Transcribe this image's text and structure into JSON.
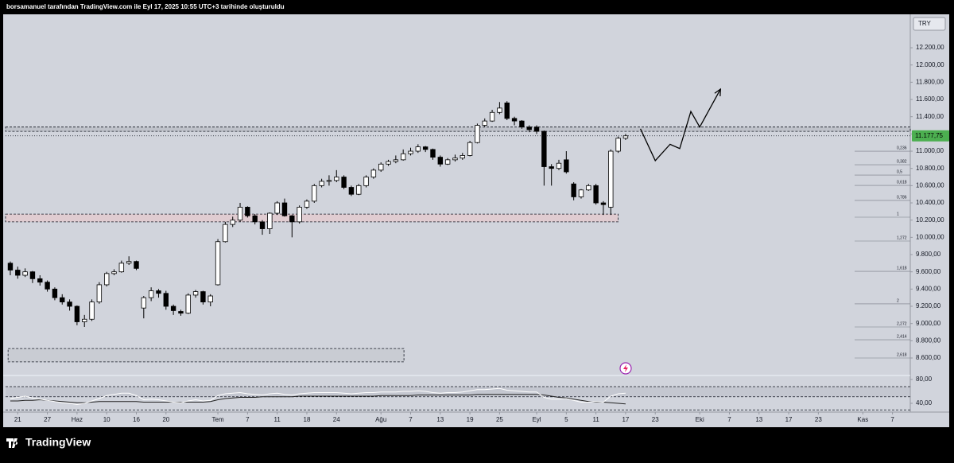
{
  "header": "borsamanuel tarafından TradingView.com ile Eyl 17, 2025 10:55 UTC+3 tarihinde oluşturuldu",
  "brand": "TradingView",
  "chart_data": {
    "type": "candlestick",
    "currency": "TRY",
    "up_color": "#ffffff",
    "down_color": "#000000",
    "wick_color": "#000000",
    "xlim": [
      -0.64,
      121.4
    ],
    "ylim": [
      8397,
      12588
    ],
    "xticks": [
      {
        "value": 1,
        "label": "21"
      },
      {
        "value": 5,
        "label": "27"
      },
      {
        "value": 9,
        "label": "Haz"
      },
      {
        "value": 13,
        "label": "10"
      },
      {
        "value": 17,
        "label": "16"
      },
      {
        "value": 21,
        "label": "20"
      },
      {
        "value": 28,
        "label": "Tem"
      },
      {
        "value": 32,
        "label": "7"
      },
      {
        "value": 36,
        "label": "11"
      },
      {
        "value": 40,
        "label": "18"
      },
      {
        "value": 44,
        "label": "24"
      },
      {
        "value": 50,
        "label": "Ağu"
      },
      {
        "value": 54,
        "label": "7"
      },
      {
        "value": 58,
        "label": "13"
      },
      {
        "value": 62,
        "label": "19"
      },
      {
        "value": 66,
        "label": "25"
      },
      {
        "value": 71,
        "label": "Eyl"
      },
      {
        "value": 75,
        "label": "5"
      },
      {
        "value": 79,
        "label": "11"
      },
      {
        "value": 83,
        "label": "17"
      },
      {
        "value": 87,
        "label": "23"
      },
      {
        "value": 93,
        "label": "Eki"
      },
      {
        "value": 97,
        "label": "7"
      },
      {
        "value": 101,
        "label": "13"
      },
      {
        "value": 105,
        "label": "17"
      },
      {
        "value": 109,
        "label": "23"
      },
      {
        "value": 115,
        "label": "Kas"
      },
      {
        "value": 119,
        "label": "7"
      }
    ],
    "yticks": [
      {
        "value": 8600,
        "label": "8.600,00"
      },
      {
        "value": 8800,
        "label": "8.800,00"
      },
      {
        "value": 9000,
        "label": "9.000,00"
      },
      {
        "value": 9200,
        "label": "9.200,00"
      },
      {
        "value": 9400,
        "label": "9.400,00"
      },
      {
        "value": 9600,
        "label": "9.600,00"
      },
      {
        "value": 9800,
        "label": "9.800,00"
      },
      {
        "value": 10000,
        "label": "10.000,00"
      },
      {
        "value": 10200,
        "label": "10.200,00"
      },
      {
        "value": 10400,
        "label": "10.400,00"
      },
      {
        "value": 10600,
        "label": "10.600,00"
      },
      {
        "value": 10800,
        "label": "10.800,00"
      },
      {
        "value": 11000,
        "label": "11.000,00"
      },
      {
        "value": 11200,
        "label": "11.200,00"
      },
      {
        "value": 11400,
        "label": "11.400,00"
      },
      {
        "value": 11600,
        "label": "11.600,00"
      },
      {
        "value": 11800,
        "label": "11.800,00"
      },
      {
        "value": 12000,
        "label": "12.000,00"
      },
      {
        "value": 12200,
        "label": "12.200,00"
      }
    ],
    "last_price": {
      "value": 11177.75,
      "label": "11.177,75",
      "color": "#4caf50"
    },
    "ohlc": [
      [
        9700,
        9720,
        9560,
        9620
      ],
      [
        9620,
        9660,
        9520,
        9560
      ],
      [
        9560,
        9640,
        9540,
        9600
      ],
      [
        9600,
        9610,
        9470,
        9520
      ],
      [
        9520,
        9560,
        9440,
        9480
      ],
      [
        9480,
        9500,
        9370,
        9400
      ],
      [
        9400,
        9420,
        9270,
        9300
      ],
      [
        9300,
        9340,
        9220,
        9250
      ],
      [
        9250,
        9280,
        9150,
        9200
      ],
      [
        9200,
        9210,
        8980,
        9020
      ],
      [
        9020,
        9100,
        8960,
        9050
      ],
      [
        9050,
        9280,
        9030,
        9250
      ],
      [
        9250,
        9480,
        9230,
        9450
      ],
      [
        9450,
        9600,
        9430,
        9580
      ],
      [
        9580,
        9630,
        9560,
        9600
      ],
      [
        9600,
        9730,
        9590,
        9700
      ],
      [
        9700,
        9780,
        9680,
        9720
      ],
      [
        9720,
        9730,
        9620,
        9640
      ],
      [
        9180,
        9320,
        9060,
        9300
      ],
      [
        9300,
        9420,
        9260,
        9380
      ],
      [
        9380,
        9400,
        9300,
        9350
      ],
      [
        9350,
        9380,
        9160,
        9200
      ],
      [
        9200,
        9220,
        9100,
        9150
      ],
      [
        9140,
        9160,
        9090,
        9120
      ],
      [
        9120,
        9350,
        9110,
        9330
      ],
      [
        9330,
        9390,
        9300,
        9370
      ],
      [
        9370,
        9380,
        9220,
        9250
      ],
      [
        9250,
        9340,
        9200,
        9320
      ],
      [
        9450,
        9980,
        9440,
        9950
      ],
      [
        9950,
        10180,
        9940,
        10150
      ],
      [
        10150,
        10240,
        10120,
        10200
      ],
      [
        10200,
        10400,
        10180,
        10350
      ],
      [
        10350,
        10360,
        10230,
        10250
      ],
      [
        10250,
        10270,
        10150,
        10180
      ],
      [
        10180,
        10200,
        10030,
        10100
      ],
      [
        10100,
        10290,
        10040,
        10280
      ],
      [
        10280,
        10420,
        10260,
        10400
      ],
      [
        10400,
        10450,
        10240,
        10250
      ],
      [
        10250,
        10260,
        10000,
        10180
      ],
      [
        10180,
        10370,
        10160,
        10350
      ],
      [
        10350,
        10440,
        10330,
        10420
      ],
      [
        10420,
        10620,
        10400,
        10600
      ],
      [
        10600,
        10680,
        10580,
        10650
      ],
      [
        10650,
        10720,
        10600,
        10660
      ],
      [
        10660,
        10780,
        10640,
        10700
      ],
      [
        10700,
        10720,
        10560,
        10580
      ],
      [
        10580,
        10600,
        10480,
        10500
      ],
      [
        10500,
        10620,
        10490,
        10600
      ],
      [
        10600,
        10720,
        10580,
        10700
      ],
      [
        10700,
        10800,
        10680,
        10780
      ],
      [
        10780,
        10870,
        10760,
        10850
      ],
      [
        10850,
        10900,
        10830,
        10880
      ],
      [
        10880,
        10950,
        10860,
        10900
      ],
      [
        10900,
        11020,
        10890,
        10970
      ],
      [
        10970,
        11040,
        10950,
        11000
      ],
      [
        11000,
        11080,
        10980,
        11050
      ],
      [
        11050,
        11060,
        10990,
        11020
      ],
      [
        11020,
        11030,
        10900,
        10930
      ],
      [
        10930,
        10950,
        10820,
        10850
      ],
      [
        10850,
        10920,
        10840,
        10900
      ],
      [
        10900,
        10960,
        10880,
        10920
      ],
      [
        10920,
        10980,
        10900,
        10950
      ],
      [
        10950,
        11120,
        10940,
        11100
      ],
      [
        11100,
        11320,
        11090,
        11300
      ],
      [
        11300,
        11380,
        11280,
        11350
      ],
      [
        11350,
        11480,
        11340,
        11450
      ],
      [
        11450,
        11570,
        11430,
        11500
      ],
      [
        11560,
        11580,
        11360,
        11380
      ],
      [
        11380,
        11400,
        11300,
        11350
      ],
      [
        11350,
        11360,
        11260,
        11280
      ],
      [
        11280,
        11300,
        11220,
        11250
      ],
      [
        11280,
        11300,
        11200,
        11230
      ],
      [
        11230,
        11240,
        10600,
        10820
      ],
      [
        10820,
        10850,
        10600,
        10800
      ],
      [
        10800,
        10900,
        10780,
        10860
      ],
      [
        10900,
        11000,
        10740,
        10760
      ],
      [
        10620,
        10640,
        10430,
        10470
      ],
      [
        10470,
        10560,
        10450,
        10550
      ],
      [
        10550,
        10620,
        10540,
        10600
      ],
      [
        10600,
        10620,
        10380,
        10400
      ],
      [
        10400,
        10420,
        10260,
        10380
      ],
      [
        10350,
        11020,
        10260,
        11000
      ],
      [
        11000,
        11170,
        10980,
        11150
      ],
      [
        11150,
        11200,
        11130,
        11177.75
      ]
    ],
    "zones": [
      {
        "x": [
          -0.64,
          121.4
        ],
        "price": [
          11230,
          11280
        ],
        "color": "#b2b5be"
      },
      {
        "x": [
          -0.64,
          82
        ],
        "price": [
          10180,
          10270
        ],
        "color": "#e9c6c9"
      },
      {
        "x": [
          -0.3,
          53.1
        ],
        "price": [
          8555,
          8710
        ],
        "color": "#c3c6cd"
      }
    ],
    "projection": {
      "x": [
        85,
        87,
        89,
        90.3,
        91.8,
        93,
        95.8
      ],
      "y": [
        11260,
        10890,
        11080,
        11030,
        11460,
        11280,
        11720
      ],
      "color": "#000000"
    },
    "fib": [
      {
        "label": "0,236",
        "price": 11000
      },
      {
        "label": "0,382",
        "price": 10843
      },
      {
        "label": "0,5",
        "price": 10723
      },
      {
        "label": "0,618",
        "price": 10603
      },
      {
        "label": "0,786",
        "price": 10428
      },
      {
        "label": "1",
        "price": 10234
      },
      {
        "label": "1,272",
        "price": 9957
      },
      {
        "label": "1,618",
        "price": 9606
      },
      {
        "label": "2",
        "price": 9228
      },
      {
        "label": "2,272",
        "price": 8960
      },
      {
        "label": "2,414",
        "price": 8812
      },
      {
        "label": "2,618",
        "price": 8600
      }
    ],
    "oscillator": {
      "ylim": [
        25.3,
        86.7
      ],
      "yticks": [
        {
          "value": 80,
          "label": "80,00"
        },
        {
          "value": 40,
          "label": "40,00"
        }
      ],
      "levels": [
        68,
        51,
        29
      ],
      "series": [
        {
          "color": "#222222",
          "values": [
            44,
            44,
            45,
            45,
            46,
            45,
            44,
            43,
            42,
            41,
            41,
            42,
            43,
            43,
            43,
            43,
            43,
            43,
            42,
            42,
            42,
            42,
            42,
            42,
            42,
            42,
            42,
            43,
            46,
            48,
            49,
            50,
            50,
            50,
            51,
            51,
            51,
            51,
            51,
            52,
            52,
            52,
            52,
            52,
            52,
            52,
            52,
            52,
            52,
            52,
            53,
            53,
            53,
            53,
            53,
            54,
            54,
            54,
            54,
            54,
            54,
            54,
            54,
            55,
            55,
            55,
            55,
            55,
            55,
            55,
            55,
            55,
            54,
            52,
            50,
            49,
            47,
            45,
            43,
            42,
            42,
            41,
            40,
            39
          ]
        },
        {
          "color": "#ffffff",
          "values": [
            48,
            50,
            52,
            49,
            47,
            45,
            43,
            41,
            40,
            38,
            40,
            44,
            48,
            53,
            55,
            57,
            57,
            53,
            46,
            47,
            46,
            44,
            42,
            41,
            44,
            46,
            44,
            45,
            53,
            56,
            57,
            58,
            56,
            55,
            54,
            56,
            57,
            55,
            54,
            56,
            57,
            58,
            58,
            58,
            58,
            57,
            56,
            57,
            58,
            58,
            59,
            59,
            59,
            60,
            60,
            61,
            60,
            58,
            57,
            58,
            58,
            59,
            61,
            63,
            63,
            64,
            65,
            62,
            61,
            60,
            59,
            59,
            50,
            47,
            47,
            48,
            45,
            42,
            42,
            43,
            42,
            52,
            56,
            57
          ]
        }
      ]
    }
  }
}
